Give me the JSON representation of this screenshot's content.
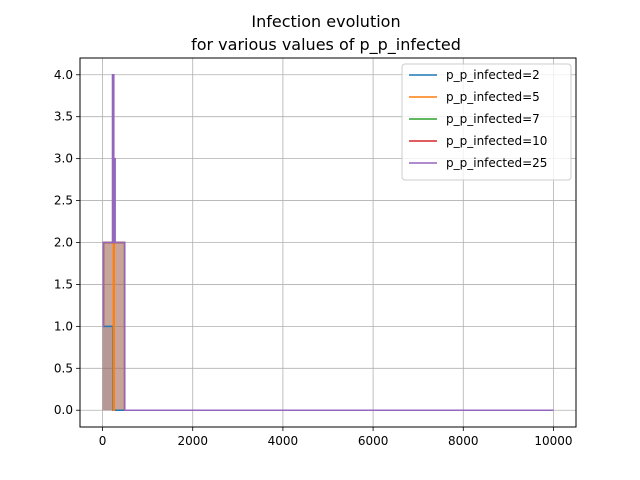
{
  "chart_data": {
    "type": "line",
    "title": "Infection evolution",
    "subtitle": "for various values of p_p_infected",
    "xlabel": "",
    "ylabel": "",
    "xlim": [
      -500,
      10500
    ],
    "ylim": [
      -0.2,
      4.2
    ],
    "xticks": [
      0,
      2000,
      4000,
      6000,
      8000,
      10000
    ],
    "yticks": [
      0.0,
      0.5,
      1.0,
      1.5,
      2.0,
      2.5,
      3.0,
      3.5,
      4.0
    ],
    "xtick_labels": [
      "0",
      "2000",
      "4000",
      "6000",
      "8000",
      "10000"
    ],
    "ytick_labels": [
      "0.0",
      "0.5",
      "1.0",
      "1.5",
      "2.0",
      "2.5",
      "3.0",
      "3.5",
      "4.0"
    ],
    "grid": true,
    "legend_position": "top-right",
    "series": [
      {
        "name": "p_p_infected=2",
        "color": "#1f77b4",
        "fill": true,
        "points": [
          [
            0,
            1
          ],
          [
            230,
            1
          ],
          [
            230,
            0
          ],
          [
            10000,
            0
          ]
        ]
      },
      {
        "name": "p_p_infected=5",
        "color": "#ff7f0e",
        "fill": true,
        "points": [
          [
            0,
            1
          ],
          [
            20,
            1
          ],
          [
            20,
            2
          ],
          [
            240,
            2
          ],
          [
            240,
            0
          ],
          [
            260,
            0
          ],
          [
            260,
            2
          ],
          [
            490,
            2
          ],
          [
            490,
            0
          ],
          [
            10000,
            0
          ]
        ]
      },
      {
        "name": "p_p_infected=7",
        "color": "#2ca02c",
        "fill": true,
        "points": [
          [
            0,
            1
          ],
          [
            20,
            1
          ],
          [
            20,
            2
          ],
          [
            490,
            2
          ],
          [
            490,
            0
          ],
          [
            10000,
            0
          ]
        ]
      },
      {
        "name": "p_p_infected=10",
        "color": "#d62728",
        "fill": true,
        "points": [
          [
            0,
            1
          ],
          [
            20,
            1
          ],
          [
            20,
            2
          ],
          [
            490,
            2
          ],
          [
            490,
            0
          ],
          [
            10000,
            0
          ]
        ]
      },
      {
        "name": "p_p_infected=25",
        "color": "#9467bd",
        "fill": true,
        "points": [
          [
            0,
            1
          ],
          [
            20,
            1
          ],
          [
            20,
            2
          ],
          [
            220,
            2
          ],
          [
            220,
            4
          ],
          [
            250,
            4
          ],
          [
            250,
            2
          ],
          [
            265,
            2
          ],
          [
            265,
            3
          ],
          [
            280,
            3
          ],
          [
            280,
            2
          ],
          [
            490,
            2
          ],
          [
            490,
            0
          ],
          [
            10000,
            0
          ]
        ]
      }
    ]
  }
}
